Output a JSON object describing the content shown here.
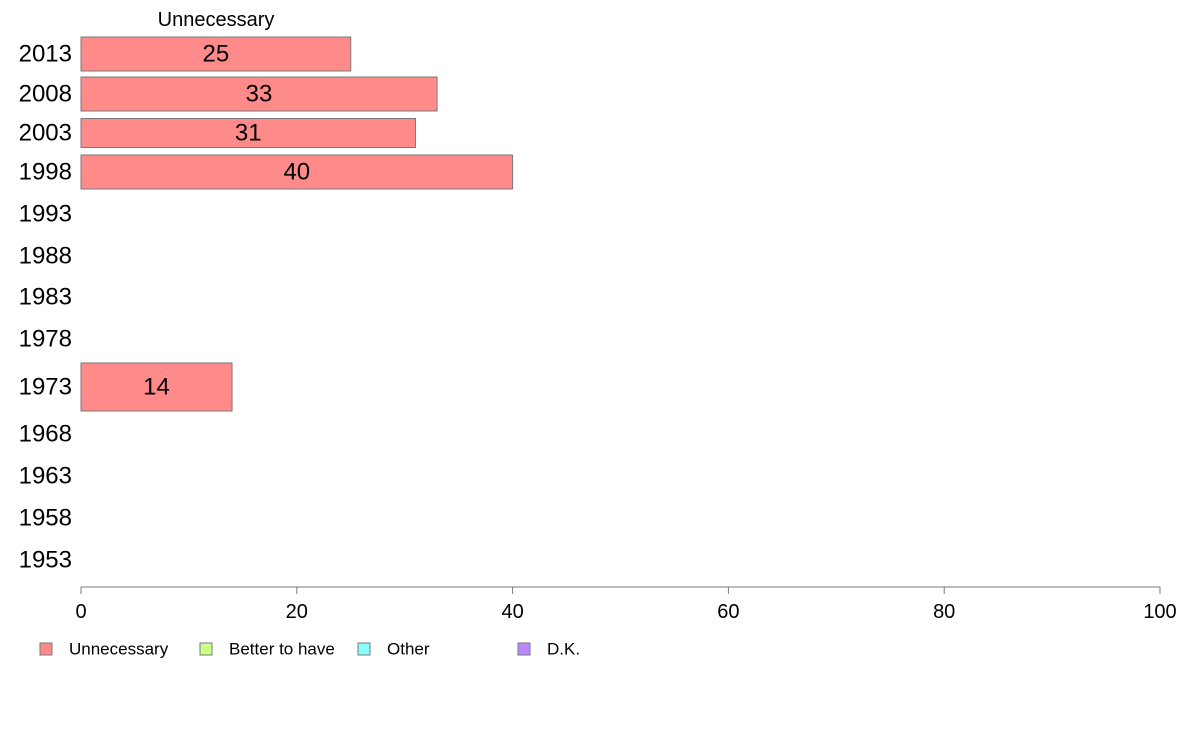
{
  "chart_data": {
    "type": "bar",
    "orientation": "horizontal",
    "title": "",
    "series_title": "Unnecessary",
    "categories": [
      "2013",
      "2008",
      "2003",
      "1998",
      "1993",
      "1988",
      "1983",
      "1978",
      "1973",
      "1968",
      "1963",
      "1958",
      "1953"
    ],
    "series": [
      {
        "name": "Unnecessary",
        "color": "#ff8a8a",
        "values": [
          25,
          33,
          31,
          40,
          null,
          null,
          null,
          null,
          14,
          null,
          null,
          null,
          null
        ]
      }
    ],
    "xlim": [
      0,
      100
    ],
    "xticks": [
      "0",
      "20",
      "40",
      "60",
      "80",
      "100"
    ],
    "xlabel": "",
    "ylabel": "",
    "grid": false,
    "legend_placement": "bottom",
    "legend": [
      {
        "label": "Unnecessary",
        "color": "#ff8a8a"
      },
      {
        "label": "Better to have",
        "color": "#ccff88"
      },
      {
        "label": "Other",
        "color": "#88ffff"
      },
      {
        "label": "D.K.",
        "color": "#bb88ff"
      }
    ]
  }
}
